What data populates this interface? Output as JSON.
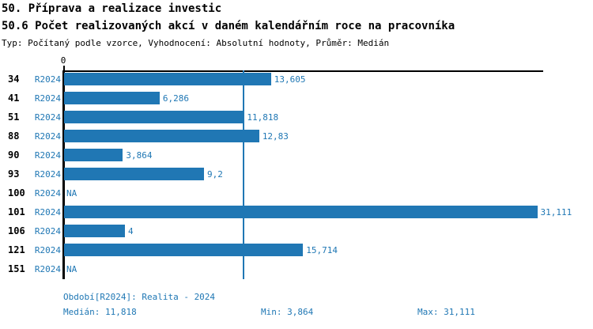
{
  "header": {
    "title_line1": "50. Příprava a realizace investic",
    "title_line2": "50.6 Počet realizovaných akcí v daném kalendářním roce na pracovníka",
    "meta": "Typ: Počítaný podle vzorce, Vyhodnocení: Absolutní hodnoty, Průměr: Medián"
  },
  "chart_data": {
    "type": "bar",
    "orientation": "horizontal",
    "title": "50.6 Počet realizovaných akcí v daném kalendářním roce na pracovníka",
    "series_label": "R2024",
    "categories": [
      "34",
      "41",
      "51",
      "88",
      "90",
      "93",
      "100",
      "101",
      "106",
      "121",
      "151"
    ],
    "values": [
      13.605,
      6.286,
      11.818,
      12.83,
      3.864,
      9.2,
      null,
      31.111,
      4,
      15.714,
      null
    ],
    "value_labels": [
      "13,605",
      "6,286",
      "11,818",
      "12,83",
      "3,864",
      "9,2",
      "NA",
      "31,111",
      "4",
      "15,714",
      "NA"
    ],
    "na_label": "NA",
    "xlim": [
      0,
      31.5
    ],
    "axis_zero_label": "0",
    "median_reference_value": 11.818,
    "bar_color": "#2077b4",
    "accent_text_color": "#1f77b4",
    "grid": "off",
    "legend_position": "none"
  },
  "footer": {
    "period": "Období[R2024]: Realita - 2024",
    "median": "Medián: 11,818",
    "min": "Min: 3,864",
    "max": "Max: 31,111"
  }
}
